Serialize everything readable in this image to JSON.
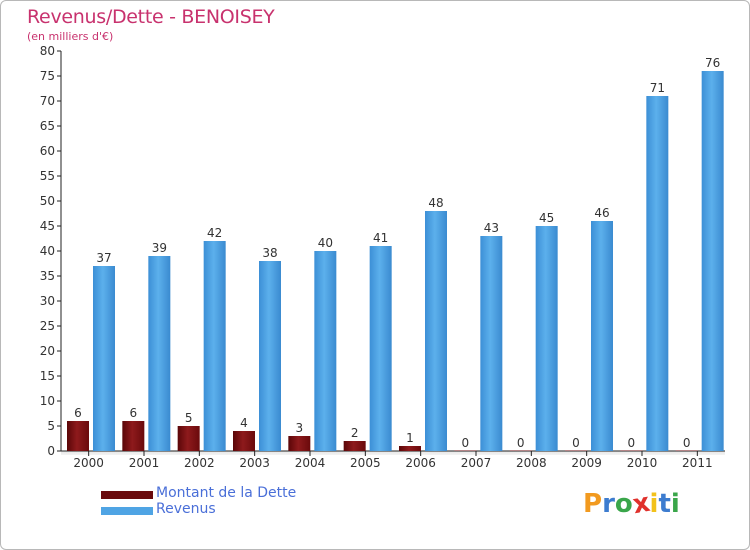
{
  "header": {
    "title": "Revenus/Dette - BENOISEY",
    "subtitle": "(en milliers d'€)"
  },
  "legend": {
    "items": [
      {
        "label": "Montant de la Dette",
        "color": "#7b0f12"
      },
      {
        "label": "Revenus",
        "color": "#4fa4e4"
      }
    ]
  },
  "logo": {
    "letters": [
      "P",
      "r",
      "o",
      "x",
      "i",
      "t",
      "i"
    ],
    "colors": [
      "#f29a1f",
      "#3d7ccf",
      "#3aa64a",
      "#e0312c",
      "#f2c21b",
      "#3d7ccf",
      "#3aa64a"
    ]
  },
  "chart_data": {
    "type": "bar",
    "categories": [
      "2000",
      "2001",
      "2002",
      "2003",
      "2004",
      "2005",
      "2006",
      "2007",
      "2008",
      "2009",
      "2010",
      "2011"
    ],
    "series": [
      {
        "name": "Montant de la Dette",
        "values": [
          6,
          6,
          5,
          4,
          3,
          2,
          1,
          0,
          0,
          0,
          0,
          0
        ],
        "color": "#7b0f12"
      },
      {
        "name": "Revenus",
        "values": [
          37,
          39,
          42,
          38,
          40,
          41,
          48,
          43,
          45,
          46,
          71,
          76
        ],
        "color": "#4fa4e4"
      }
    ],
    "ylim": [
      0,
      80
    ],
    "yticks": [
      0,
      5,
      10,
      15,
      20,
      25,
      30,
      35,
      40,
      45,
      50,
      55,
      60,
      65,
      70,
      75,
      80
    ],
    "data_labels": true,
    "grid": false,
    "legend_position": "bottom-left"
  }
}
